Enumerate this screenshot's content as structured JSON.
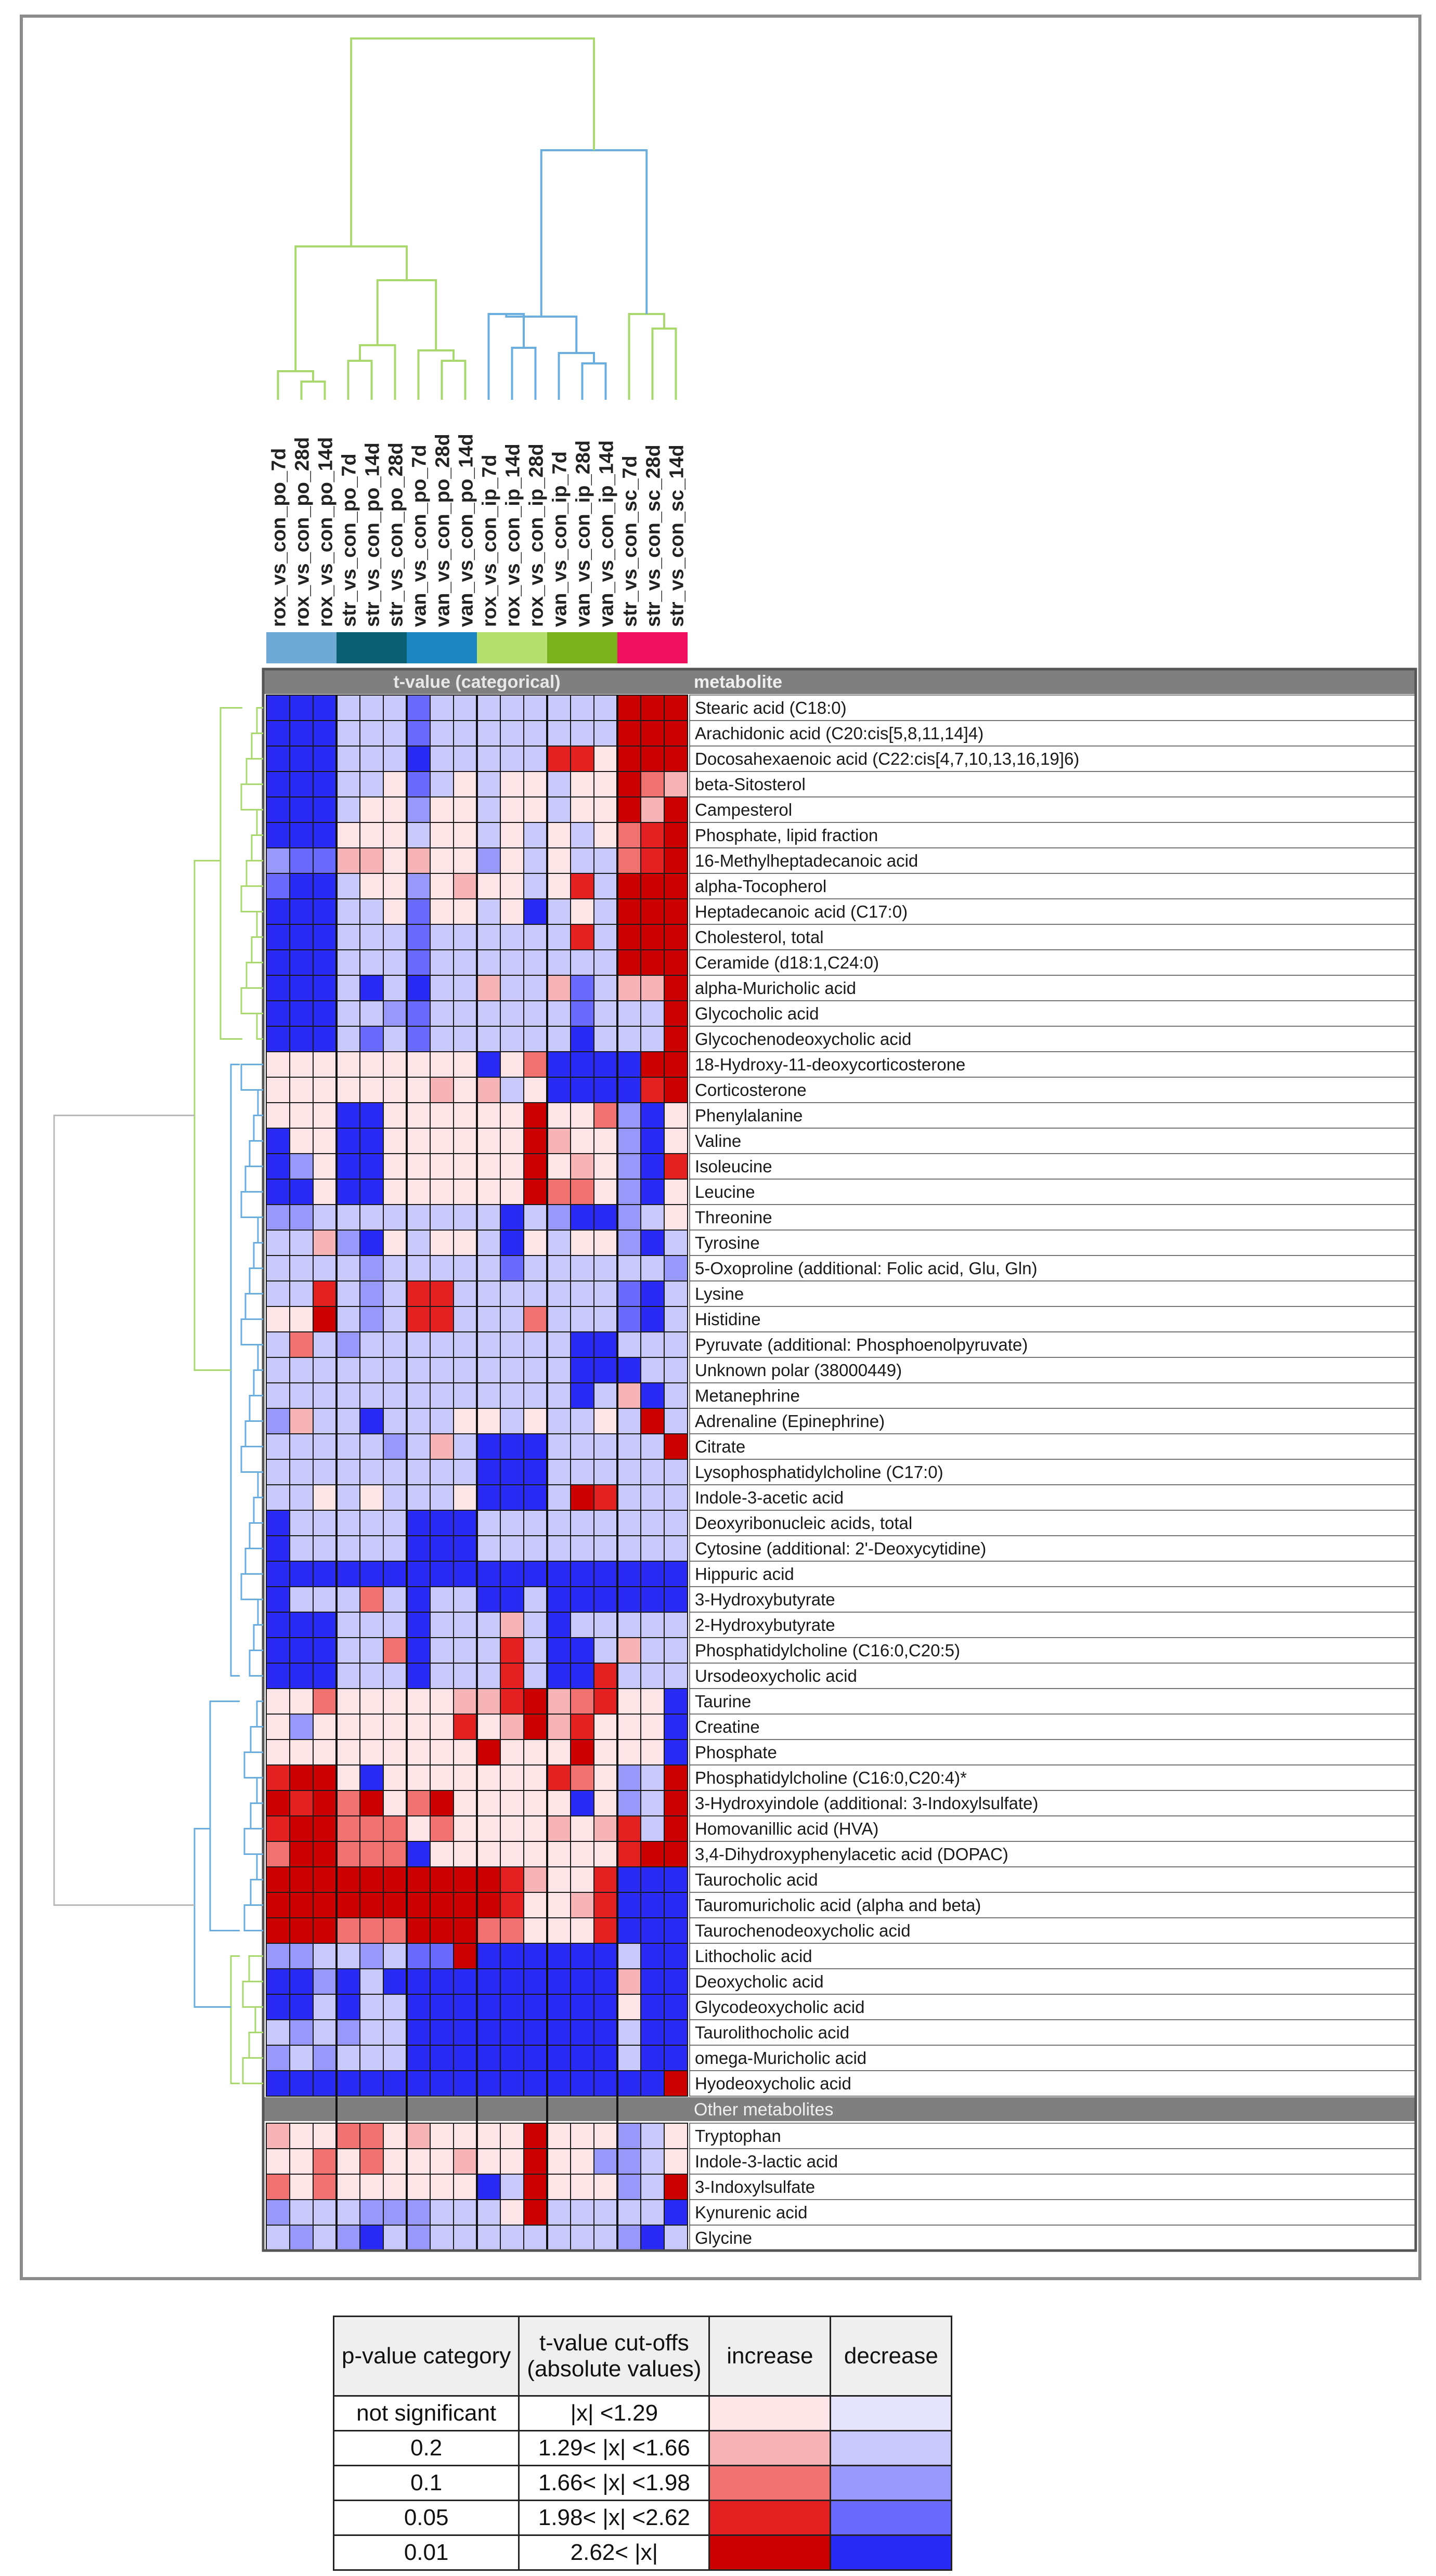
{
  "chart_data": {
    "type": "heatmap",
    "column_header": "t-value (categorical)",
    "row_header": "metabolite",
    "other_section_label": "Other metabolites",
    "columns": [
      "rox_vs_con_po_7d",
      "rox_vs_con_po_28d",
      "rox_vs_con_po_14d",
      "str_vs_con_po_7d",
      "str_vs_con_po_14d",
      "str_vs_con_po_28d",
      "van_vs_con_po_7d",
      "van_vs_con_po_28d",
      "van_vs_con_po_14d",
      "rox_vs_con_ip_7d",
      "rox_vs_con_ip_14d",
      "rox_vs_con_ip_28d",
      "van_vs_con_ip_7d",
      "van_vs_con_ip_28d",
      "van_vs_con_ip_14d",
      "str_vs_con_sc_7d",
      "str_vs_con_sc_28d",
      "str_vs_con_sc_14d"
    ],
    "column_groups": [
      {
        "span": 3,
        "color": "#6faad6"
      },
      {
        "span": 3,
        "color": "#0a5f73"
      },
      {
        "span": 3,
        "color": "#1b86c2"
      },
      {
        "span": 3,
        "color": "#b6df6f"
      },
      {
        "span": 3,
        "color": "#79b21c"
      },
      {
        "span": 3,
        "color": "#f01060"
      }
    ],
    "category_scale": {
      "-4": "#2a2af5",
      "-3": "#6a6aff",
      "-2": "#9898fb",
      "-1": "#c8c8fb",
      "0": "#e6e4fc",
      "1": "#fde4e6",
      "2": "#f7b4b6",
      "3": "#f27272",
      "4": "#e52020",
      "5": "#cc0000"
    },
    "rows": [
      "Stearic acid (C18:0)",
      "Arachidonic acid (C20:cis[5,8,11,14]4)",
      "Docosahexaenoic acid (C22:cis[4,7,10,13,16,19]6)",
      "beta-Sitosterol",
      "Campesterol",
      "Phosphate, lipid fraction",
      "16-Methylheptadecanoic acid",
      "alpha-Tocopherol",
      "Heptadecanoic acid (C17:0)",
      "Cholesterol, total",
      "Ceramide (d18:1,C24:0)",
      "alpha-Muricholic acid",
      "Glycocholic acid",
      "Glycochenodeoxycholic acid",
      "18-Hydroxy-11-deoxycorticosterone",
      "Corticosterone",
      "Phenylalanine",
      "Valine",
      "Isoleucine",
      "Leucine",
      "Threonine",
      "Tyrosine",
      "5-Oxoproline (additional: Folic acid, Glu, Gln)",
      "Lysine",
      "Histidine",
      "Pyruvate (additional: Phosphoenolpyruvate)",
      "Unknown polar (38000449)",
      "Metanephrine",
      "Adrenaline (Epinephrine)",
      "Citrate",
      "Lysophosphatidylcholine (C17:0)",
      "Indole-3-acetic acid",
      "Deoxyribonucleic acids, total",
      "Cytosine (additional: 2'-Deoxycytidine)",
      "Hippuric acid",
      "3-Hydroxybutyrate",
      "2-Hydroxybutyrate",
      "Phosphatidylcholine (C16:0,C20:5)",
      "Ursodeoxycholic acid",
      "Taurine",
      "Creatine",
      "Phosphate",
      "Phosphatidylcholine (C16:0,C20:4)*",
      "3-Hydroxyindole (additional: 3-Indoxylsulfate)",
      "Homovanillic acid (HVA)",
      "3,4-Dihydroxyphenylacetic acid (DOPAC)",
      "Taurocholic acid",
      "Tauromuricholic acid (alpha and beta)",
      "Taurochenodeoxycholic acid",
      "Lithocholic acid",
      "Deoxycholic acid",
      "Glycodeoxycholic acid",
      "Taurolithocholic acid",
      "omega-Muricholic acid",
      "Hyodeoxycholic acid"
    ],
    "other_rows": [
      "Tryptophan",
      "Indole-3-lactic acid",
      "3-Indoxylsulfate",
      "Kynurenic acid",
      "Glycine"
    ],
    "values": [
      [
        -4,
        -4,
        -4,
        -1,
        -1,
        -1,
        -3,
        -1,
        -1,
        -1,
        -1,
        -1,
        -1,
        -1,
        -1,
        5,
        5,
        5
      ],
      [
        -4,
        -4,
        -4,
        -1,
        -1,
        -1,
        -3,
        -1,
        -1,
        -1,
        -1,
        -1,
        -1,
        -1,
        -1,
        5,
        5,
        5
      ],
      [
        -4,
        -4,
        -4,
        -1,
        -1,
        -1,
        -4,
        -1,
        -1,
        -1,
        -1,
        -1,
        4,
        4,
        1,
        5,
        5,
        5
      ],
      [
        -4,
        -4,
        -4,
        -1,
        -1,
        1,
        -3,
        -1,
        1,
        -1,
        1,
        1,
        -1,
        1,
        1,
        5,
        3,
        2
      ],
      [
        -4,
        -4,
        -4,
        -1,
        1,
        1,
        -2,
        1,
        1,
        -1,
        1,
        1,
        -1,
        1,
        1,
        5,
        2,
        5
      ],
      [
        -4,
        -4,
        -4,
        1,
        1,
        1,
        -1,
        1,
        1,
        -1,
        1,
        -1,
        1,
        -1,
        1,
        3,
        4,
        5
      ],
      [
        -2,
        -3,
        -3,
        2,
        2,
        1,
        2,
        1,
        1,
        -2,
        1,
        -1,
        1,
        -1,
        -1,
        3,
        4,
        5
      ],
      [
        -3,
        -4,
        -4,
        -1,
        1,
        1,
        -2,
        1,
        2,
        1,
        1,
        -1,
        1,
        4,
        -1,
        5,
        5,
        5
      ],
      [
        -4,
        -4,
        -4,
        -1,
        -1,
        1,
        -3,
        1,
        1,
        -1,
        1,
        -4,
        -1,
        1,
        -1,
        5,
        5,
        5
      ],
      [
        -4,
        -4,
        -4,
        -1,
        -1,
        -1,
        -3,
        -1,
        -1,
        -1,
        -1,
        -1,
        -1,
        4,
        -1,
        5,
        5,
        5
      ],
      [
        -4,
        -4,
        -4,
        -1,
        -1,
        -1,
        -3,
        -1,
        -1,
        -1,
        -1,
        -1,
        -1,
        -1,
        -1,
        5,
        5,
        5
      ],
      [
        -4,
        -4,
        -4,
        -1,
        -4,
        -1,
        -4,
        -1,
        -1,
        2,
        -1,
        -1,
        2,
        -3,
        -1,
        2,
        2,
        5
      ],
      [
        -4,
        -4,
        -4,
        -1,
        -1,
        -2,
        -3,
        -1,
        -1,
        -1,
        -1,
        -1,
        -1,
        -3,
        -1,
        -1,
        -1,
        5
      ],
      [
        -4,
        -4,
        -4,
        -1,
        -3,
        -1,
        -3,
        -1,
        -1,
        -1,
        -1,
        -1,
        -1,
        -4,
        -1,
        -1,
        -1,
        5
      ],
      [
        1,
        1,
        1,
        1,
        1,
        1,
        1,
        1,
        1,
        -4,
        1,
        3,
        -4,
        -4,
        -4,
        -4,
        5,
        5
      ],
      [
        1,
        1,
        1,
        1,
        1,
        1,
        1,
        2,
        1,
        2,
        -1,
        1,
        -4,
        -4,
        -4,
        -4,
        4,
        5
      ],
      [
        1,
        1,
        1,
        -4,
        -4,
        1,
        1,
        1,
        1,
        1,
        1,
        5,
        1,
        1,
        3,
        -2,
        -4,
        1
      ],
      [
        -4,
        1,
        1,
        -4,
        -4,
        1,
        1,
        1,
        1,
        1,
        1,
        5,
        2,
        1,
        1,
        -2,
        -4,
        1
      ],
      [
        -4,
        -2,
        1,
        -4,
        -4,
        1,
        1,
        1,
        1,
        1,
        1,
        5,
        1,
        2,
        1,
        -2,
        -4,
        4
      ],
      [
        -4,
        -4,
        1,
        -4,
        -4,
        1,
        1,
        1,
        1,
        1,
        1,
        5,
        3,
        3,
        1,
        -2,
        -4,
        1
      ],
      [
        -2,
        -2,
        -1,
        -1,
        -1,
        -1,
        -1,
        -1,
        -1,
        -1,
        -4,
        -1,
        -2,
        -4,
        -4,
        -2,
        -1,
        1
      ],
      [
        -1,
        -1,
        2,
        -2,
        -4,
        1,
        -1,
        1,
        1,
        -1,
        -4,
        1,
        -1,
        1,
        1,
        -2,
        -4,
        -1
      ],
      [
        -1,
        -1,
        -1,
        -1,
        -2,
        -1,
        -1,
        -1,
        -1,
        -1,
        -3,
        -1,
        -1,
        -1,
        -1,
        -1,
        -1,
        -2
      ],
      [
        -1,
        -1,
        4,
        -1,
        -2,
        -1,
        4,
        4,
        -1,
        -1,
        -1,
        -1,
        -1,
        -1,
        -1,
        -3,
        -4,
        -1
      ],
      [
        1,
        1,
        5,
        -1,
        -2,
        -1,
        4,
        4,
        -1,
        -1,
        -1,
        3,
        -1,
        -1,
        -1,
        -3,
        -4,
        -1
      ],
      [
        -1,
        3,
        -1,
        -2,
        -1,
        -1,
        -1,
        -1,
        -1,
        -1,
        -1,
        -1,
        -1,
        -4,
        -4,
        -1,
        -1,
        -1
      ],
      [
        -1,
        -1,
        -1,
        -1,
        -1,
        -1,
        -1,
        -1,
        -1,
        -1,
        -1,
        -1,
        -1,
        -4,
        -4,
        -4,
        -1,
        -1
      ],
      [
        -1,
        -1,
        -1,
        -1,
        -1,
        -1,
        -1,
        -1,
        -1,
        -1,
        -1,
        -1,
        -1,
        -4,
        -1,
        2,
        -4,
        -1
      ],
      [
        -2,
        2,
        -1,
        -1,
        -4,
        -1,
        -1,
        -1,
        1,
        1,
        -1,
        1,
        -1,
        -1,
        1,
        -1,
        5,
        -1
      ],
      [
        -1,
        -1,
        -1,
        -1,
        -1,
        -2,
        -1,
        2,
        -1,
        -4,
        -4,
        -4,
        -1,
        -1,
        -1,
        -1,
        -1,
        5
      ],
      [
        -1,
        -1,
        -1,
        -1,
        -1,
        -1,
        -1,
        -1,
        -1,
        -4,
        -4,
        -4,
        -1,
        -1,
        -1,
        -1,
        -1,
        -1
      ],
      [
        -1,
        -1,
        1,
        -1,
        1,
        -1,
        -1,
        -1,
        1,
        -4,
        -4,
        -4,
        -1,
        5,
        4,
        -1,
        -1,
        -1
      ],
      [
        -4,
        -1,
        -1,
        -1,
        -1,
        -1,
        -4,
        -4,
        -4,
        -1,
        -1,
        -1,
        -1,
        -1,
        -1,
        -1,
        -1,
        -1
      ],
      [
        -4,
        -1,
        -1,
        -1,
        -1,
        -1,
        -4,
        -4,
        -4,
        -1,
        -1,
        -1,
        -1,
        -1,
        -1,
        -1,
        -1,
        -1
      ],
      [
        -4,
        -4,
        -4,
        -4,
        -4,
        -4,
        -4,
        -4,
        -4,
        -4,
        -4,
        -4,
        -4,
        -4,
        -4,
        -4,
        -4,
        -4
      ],
      [
        -4,
        -1,
        -1,
        -1,
        3,
        -1,
        -4,
        -1,
        -1,
        -4,
        -4,
        -1,
        -4,
        -4,
        -4,
        -4,
        -4,
        -4
      ],
      [
        -4,
        -4,
        -4,
        -1,
        -1,
        -1,
        -4,
        -1,
        -1,
        -1,
        2,
        -1,
        -4,
        -1,
        -1,
        -1,
        -1,
        -1
      ],
      [
        -4,
        -4,
        -4,
        -1,
        -1,
        3,
        -4,
        -1,
        -1,
        -1,
        4,
        -1,
        -4,
        -4,
        -1,
        2,
        -1,
        -1
      ],
      [
        -4,
        -4,
        -4,
        -1,
        -1,
        -1,
        -4,
        -1,
        -1,
        -1,
        4,
        -1,
        -4,
        -4,
        4,
        -1,
        -1,
        -1
      ],
      [
        1,
        1,
        3,
        1,
        1,
        1,
        1,
        1,
        2,
        2,
        4,
        5,
        2,
        3,
        4,
        1,
        1,
        -4
      ],
      [
        1,
        -2,
        1,
        1,
        1,
        1,
        1,
        1,
        4,
        1,
        2,
        5,
        2,
        4,
        1,
        1,
        1,
        -4
      ],
      [
        1,
        1,
        1,
        1,
        1,
        1,
        1,
        1,
        1,
        5,
        1,
        1,
        1,
        5,
        1,
        1,
        1,
        -4
      ],
      [
        4,
        5,
        5,
        1,
        -4,
        1,
        1,
        1,
        1,
        1,
        1,
        1,
        4,
        3,
        1,
        -2,
        -1,
        5
      ],
      [
        5,
        4,
        5,
        3,
        5,
        1,
        3,
        5,
        1,
        1,
        1,
        1,
        1,
        -4,
        1,
        -2,
        -1,
        5
      ],
      [
        4,
        5,
        5,
        3,
        3,
        3,
        1,
        3,
        1,
        1,
        1,
        1,
        2,
        1,
        2,
        4,
        -1,
        5
      ],
      [
        3,
        5,
        5,
        3,
        3,
        3,
        -4,
        1,
        1,
        1,
        1,
        1,
        1,
        1,
        1,
        4,
        5,
        5
      ],
      [
        5,
        5,
        5,
        5,
        5,
        5,
        5,
        5,
        5,
        5,
        4,
        2,
        1,
        1,
        4,
        -4,
        -4,
        -4
      ],
      [
        5,
        5,
        5,
        5,
        5,
        5,
        5,
        5,
        5,
        5,
        4,
        1,
        1,
        2,
        4,
        -4,
        -4,
        -4
      ],
      [
        5,
        5,
        5,
        3,
        3,
        3,
        5,
        5,
        5,
        3,
        3,
        1,
        1,
        1,
        4,
        -4,
        -4,
        -4
      ],
      [
        -2,
        -2,
        -1,
        -1,
        -2,
        -1,
        -3,
        -3,
        5,
        -4,
        -4,
        -4,
        -4,
        -4,
        -4,
        -1,
        -4,
        -4
      ],
      [
        -4,
        -4,
        -2,
        -4,
        -1,
        -4,
        -4,
        -4,
        -4,
        -4,
        -4,
        -4,
        -4,
        -4,
        -4,
        2,
        -4,
        -4
      ],
      [
        -4,
        -4,
        -1,
        -4,
        -1,
        -1,
        -4,
        -4,
        -4,
        -4,
        -4,
        -4,
        -4,
        -4,
        -4,
        1,
        -4,
        -4
      ],
      [
        -1,
        -2,
        -1,
        -2,
        -1,
        -1,
        -4,
        -4,
        -4,
        -4,
        -4,
        -4,
        -4,
        -4,
        -4,
        -1,
        -4,
        -4
      ],
      [
        -2,
        -1,
        -2,
        -1,
        -1,
        -1,
        -4,
        -4,
        -4,
        -4,
        -4,
        -4,
        -4,
        -4,
        -4,
        -1,
        -4,
        -4
      ],
      [
        -4,
        -4,
        -4,
        -4,
        -4,
        -4,
        -4,
        -4,
        -4,
        -4,
        -4,
        -4,
        -4,
        -4,
        -4,
        -4,
        -4,
        5
      ]
    ],
    "other_values": [
      [
        2,
        1,
        1,
        3,
        3,
        1,
        2,
        1,
        1,
        1,
        1,
        5,
        1,
        1,
        1,
        -2,
        -1,
        1
      ],
      [
        1,
        1,
        3,
        1,
        3,
        1,
        1,
        1,
        2,
        1,
        1,
        5,
        1,
        1,
        -2,
        -2,
        -1,
        1
      ],
      [
        3,
        1,
        3,
        1,
        1,
        1,
        1,
        1,
        1,
        -4,
        -1,
        5,
        1,
        1,
        1,
        -2,
        -1,
        5
      ],
      [
        -2,
        -1,
        -1,
        -1,
        -2,
        -2,
        -2,
        -1,
        -1,
        -1,
        1,
        5,
        -1,
        -1,
        -1,
        -1,
        -1,
        -4
      ],
      [
        -1,
        -2,
        -1,
        -2,
        -4,
        -1,
        -2,
        -1,
        -1,
        -1,
        -1,
        -1,
        -1,
        -1,
        -1,
        -2,
        -4,
        -1
      ]
    ],
    "legend": {
      "headers": [
        "p-value category",
        "t-value cut-offs\n(absolute values)",
        "increase",
        "decrease"
      ],
      "rows": [
        {
          "p": "not significant",
          "cut": "|x| <1.29",
          "inc": "#fde4e6",
          "dec": "#e6e4fc"
        },
        {
          "p": "0.2",
          "cut": "1.29< |x| <1.66",
          "inc": "#f7b4b6",
          "dec": "#c8c8fb"
        },
        {
          "p": "0.1",
          "cut": "1.66< |x| <1.98",
          "inc": "#f27272",
          "dec": "#9898fb"
        },
        {
          "p": "0.05",
          "cut": "1.98< |x| <2.62",
          "inc": "#e52020",
          "dec": "#6a6aff"
        },
        {
          "p": "0.01",
          "cut": "2.62< |x|",
          "inc": "#cc0000",
          "dec": "#2a2af5"
        }
      ]
    }
  }
}
